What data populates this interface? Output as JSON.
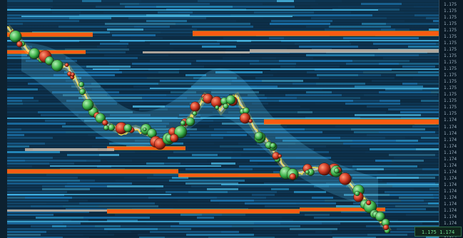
{
  "app": {
    "price_axis_labels": [
      "1.175",
      "1.175",
      "1.175",
      "1.175",
      "1.175",
      "1.175",
      "1.175",
      "1.175",
      "1.175",
      "1.175",
      "1.175",
      "1.175",
      "1.175",
      "1.175",
      "1.175",
      "1.175",
      "1.175",
      "1.175",
      "1.174",
      "1.174",
      "1.174",
      "1.174",
      "1.174",
      "1.174",
      "1.174",
      "1.174",
      "1.174",
      "1.174",
      "1.174",
      "1.174",
      "1.174",
      "1.174",
      "1.174",
      "1.174",
      "1.174",
      "1.174",
      "1.174"
    ],
    "status_readout": "1.175 1.174",
    "colors": {
      "background": "#0d2130",
      "depth_low": "#0f3c5e",
      "depth_mid": "#1e7fbf",
      "depth_high": "#4cc3f2",
      "liquidity_wall": "#ff5a10",
      "liquidity_wall_core": "#ffb020",
      "price_trace": "#ffe34a",
      "bubble_red": "#d13b24",
      "bubble_green": "#3db34a",
      "readout_green": "#6fdc8f"
    }
  }
}
